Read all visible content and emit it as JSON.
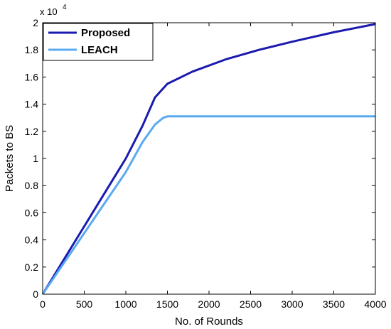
{
  "chart_data": {
    "type": "line",
    "xlabel": "No. of Rounds",
    "ylabel": "Packets to BS",
    "y_multiplier_label": "x 10",
    "y_multiplier_exponent": "4",
    "xlim": [
      0,
      4000
    ],
    "ylim": [
      0,
      2
    ],
    "xticks": [
      0,
      500,
      1000,
      1500,
      2000,
      2500,
      3000,
      3500,
      4000
    ],
    "yticks": [
      0,
      0.2,
      0.4,
      0.6,
      0.8,
      1,
      1.2,
      1.4,
      1.6,
      1.8,
      2
    ],
    "xtick_labels": [
      "0",
      "500",
      "1000",
      "1500",
      "2000",
      "2500",
      "3000",
      "3500",
      "4000"
    ],
    "ytick_labels": [
      "0",
      "0.2",
      "0.4",
      "0.6",
      "0.8",
      "1",
      "1.2",
      "1.4",
      "1.6",
      "1.8",
      "2"
    ],
    "grid": false,
    "legend_position": "top-left",
    "series": [
      {
        "name": "Proposed",
        "color": "#1a1ab0",
        "x": [
          0,
          500,
          1000,
          1200,
          1350,
          1500,
          1800,
          2200,
          2600,
          3000,
          3500,
          4000
        ],
        "y": [
          0,
          0.5,
          1.0,
          1.24,
          1.45,
          1.55,
          1.64,
          1.73,
          1.8,
          1.86,
          1.93,
          1.99
        ]
      },
      {
        "name": "LEACH",
        "color": "#5aaaf0",
        "x": [
          0,
          500,
          1000,
          1200,
          1350,
          1450,
          1500,
          2000,
          2500,
          3000,
          3500,
          4000
        ],
        "y": [
          0,
          0.45,
          0.9,
          1.12,
          1.25,
          1.3,
          1.31,
          1.31,
          1.31,
          1.31,
          1.31,
          1.31
        ]
      }
    ]
  }
}
